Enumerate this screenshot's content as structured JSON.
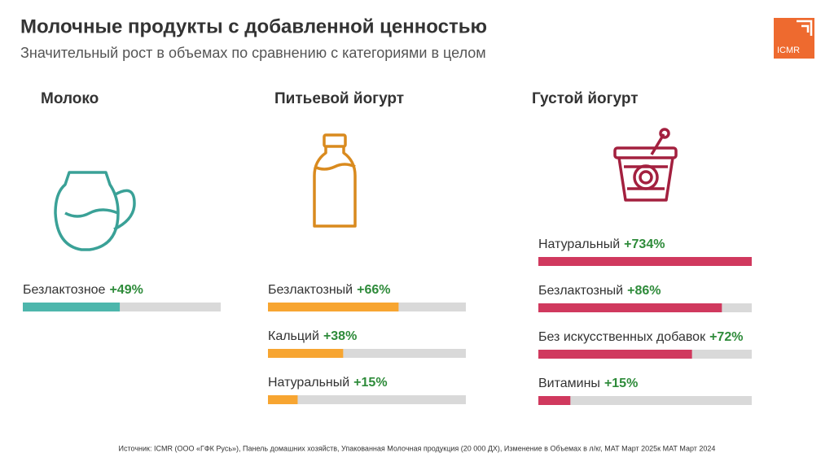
{
  "title": "Молочные продукты с добавленной ценностью",
  "subtitle": "Значительный рост в объемах по сравнению с категориями в целом",
  "logo": "ICMR",
  "source": "Источник: ICMR (ООО «ГФК Русь»), Панель домашних хозяйств, Упакованная Молочная продукция (20 000 ДХ), Изменение в Объемах в л/кг, МАТ Март 2025к МАТ Март 2024",
  "chart_data": [
    {
      "type": "bar",
      "title": "Молоко",
      "categories": [
        "Безлактозное"
      ],
      "values": [
        49
      ],
      "value_labels": [
        "+49%"
      ],
      "color": "#4db6ac",
      "xlim": [
        0,
        100
      ]
    },
    {
      "type": "bar",
      "title": "Питьевой йогурт",
      "categories": [
        "Безлактозный",
        "Кальций",
        "Натуральный"
      ],
      "values": [
        66,
        38,
        15
      ],
      "value_labels": [
        "+66%",
        "+38%",
        "+15%"
      ],
      "color": "#f7a531",
      "xlim": [
        0,
        100
      ]
    },
    {
      "type": "bar",
      "title": "Густой йогурт",
      "categories": [
        "Натуральный",
        "Безлактозный",
        "Без искусственных добавок",
        "Витамины"
      ],
      "values": [
        734,
        86,
        72,
        15
      ],
      "value_labels": [
        "+734%",
        "+86%",
        "+72%",
        "+15%"
      ],
      "color": "#d0395e",
      "xlim": [
        0,
        100
      ]
    }
  ]
}
